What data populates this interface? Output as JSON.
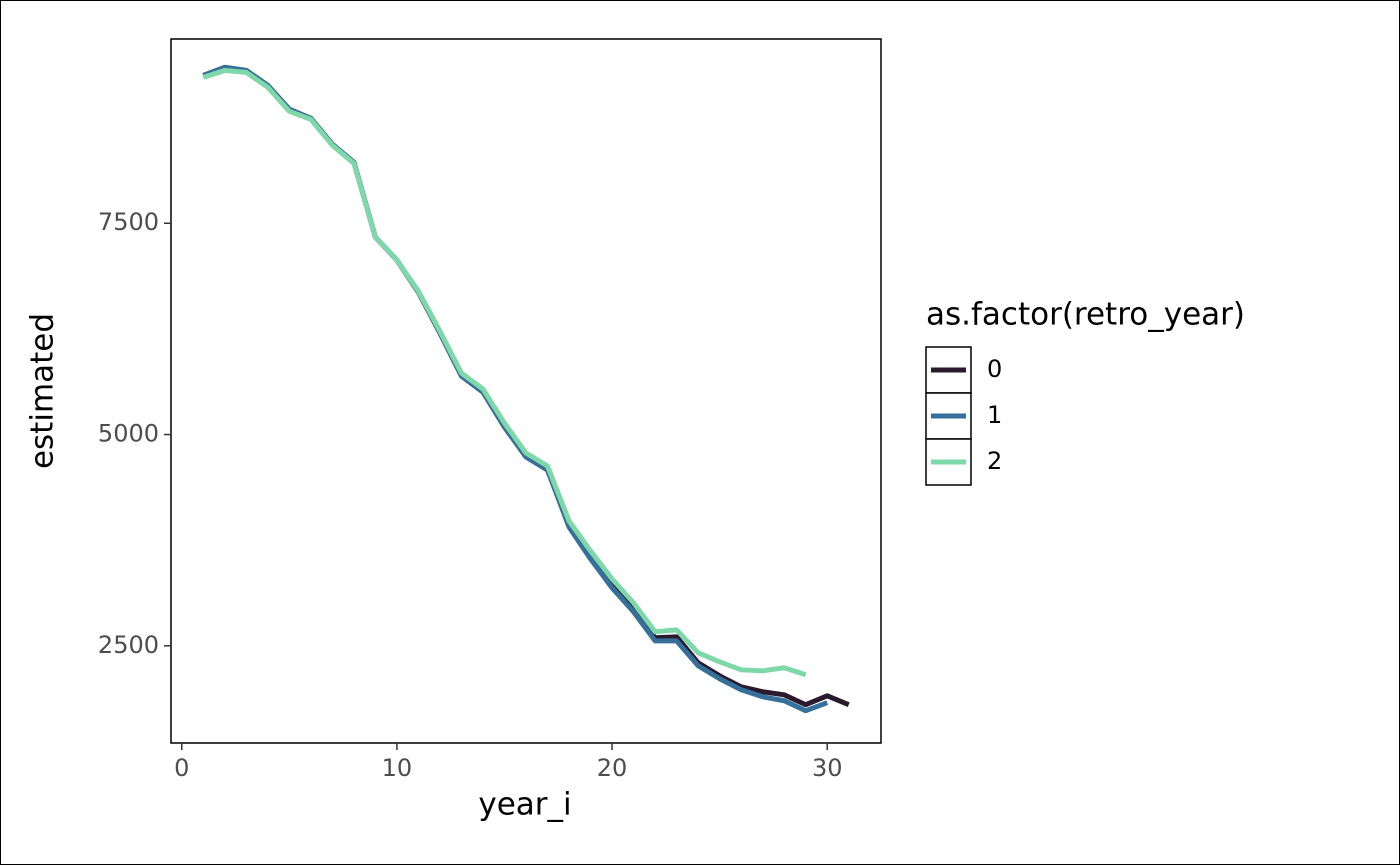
{
  "chart_data": {
    "type": "line",
    "x_label": "year_i",
    "y_label": "estimated",
    "legend_title": "as.factor(retro_year)",
    "x": [
      1,
      2,
      3,
      4,
      5,
      6,
      7,
      8,
      9,
      10,
      11,
      12,
      13,
      14,
      15,
      16,
      17,
      18,
      19,
      20,
      21,
      22,
      23,
      24,
      25,
      26,
      27,
      28,
      29,
      30,
      31
    ],
    "series": [
      {
        "name": "0",
        "color": "#2a1a2e",
        "values": [
          9249,
          9344,
          9308,
          9131,
          8848,
          8741,
          8434,
          8221,
          7335,
          7063,
          6684,
          6200,
          5692,
          5502,
          5089,
          4735,
          4580,
          3930,
          3552,
          3209,
          2926,
          2595,
          2606,
          2299,
          2145,
          2015,
          1956,
          1920,
          1803,
          1909,
          1803
        ]
      },
      {
        "name": "1",
        "color": "#35709b",
        "values": [
          9249,
          9344,
          9308,
          9131,
          8848,
          8741,
          8434,
          8221,
          7335,
          7063,
          6684,
          6200,
          5692,
          5502,
          5089,
          4735,
          4580,
          3906,
          3528,
          3186,
          2902,
          2559,
          2559,
          2264,
          2110,
          1980,
          1897,
          1850,
          1732,
          1827,
          null
        ]
      },
      {
        "name": "2",
        "color": "#7fd8a9",
        "values": [
          9226,
          9308,
          9285,
          9108,
          8824,
          8729,
          8422,
          8209,
          7335,
          7063,
          6696,
          6223,
          5727,
          5538,
          5136,
          4781,
          4628,
          3978,
          3623,
          3292,
          3008,
          2666,
          2689,
          2417,
          2311,
          2216,
          2204,
          2240,
          2157,
          null,
          null
        ]
      }
    ],
    "xlim": [
      -0.5,
      32.5
    ],
    "xticks": [
      0,
      10,
      20,
      30
    ],
    "ylim": [
      1350,
      9680
    ],
    "yticks": [
      2500,
      5000,
      7500
    ],
    "grid": false
  }
}
